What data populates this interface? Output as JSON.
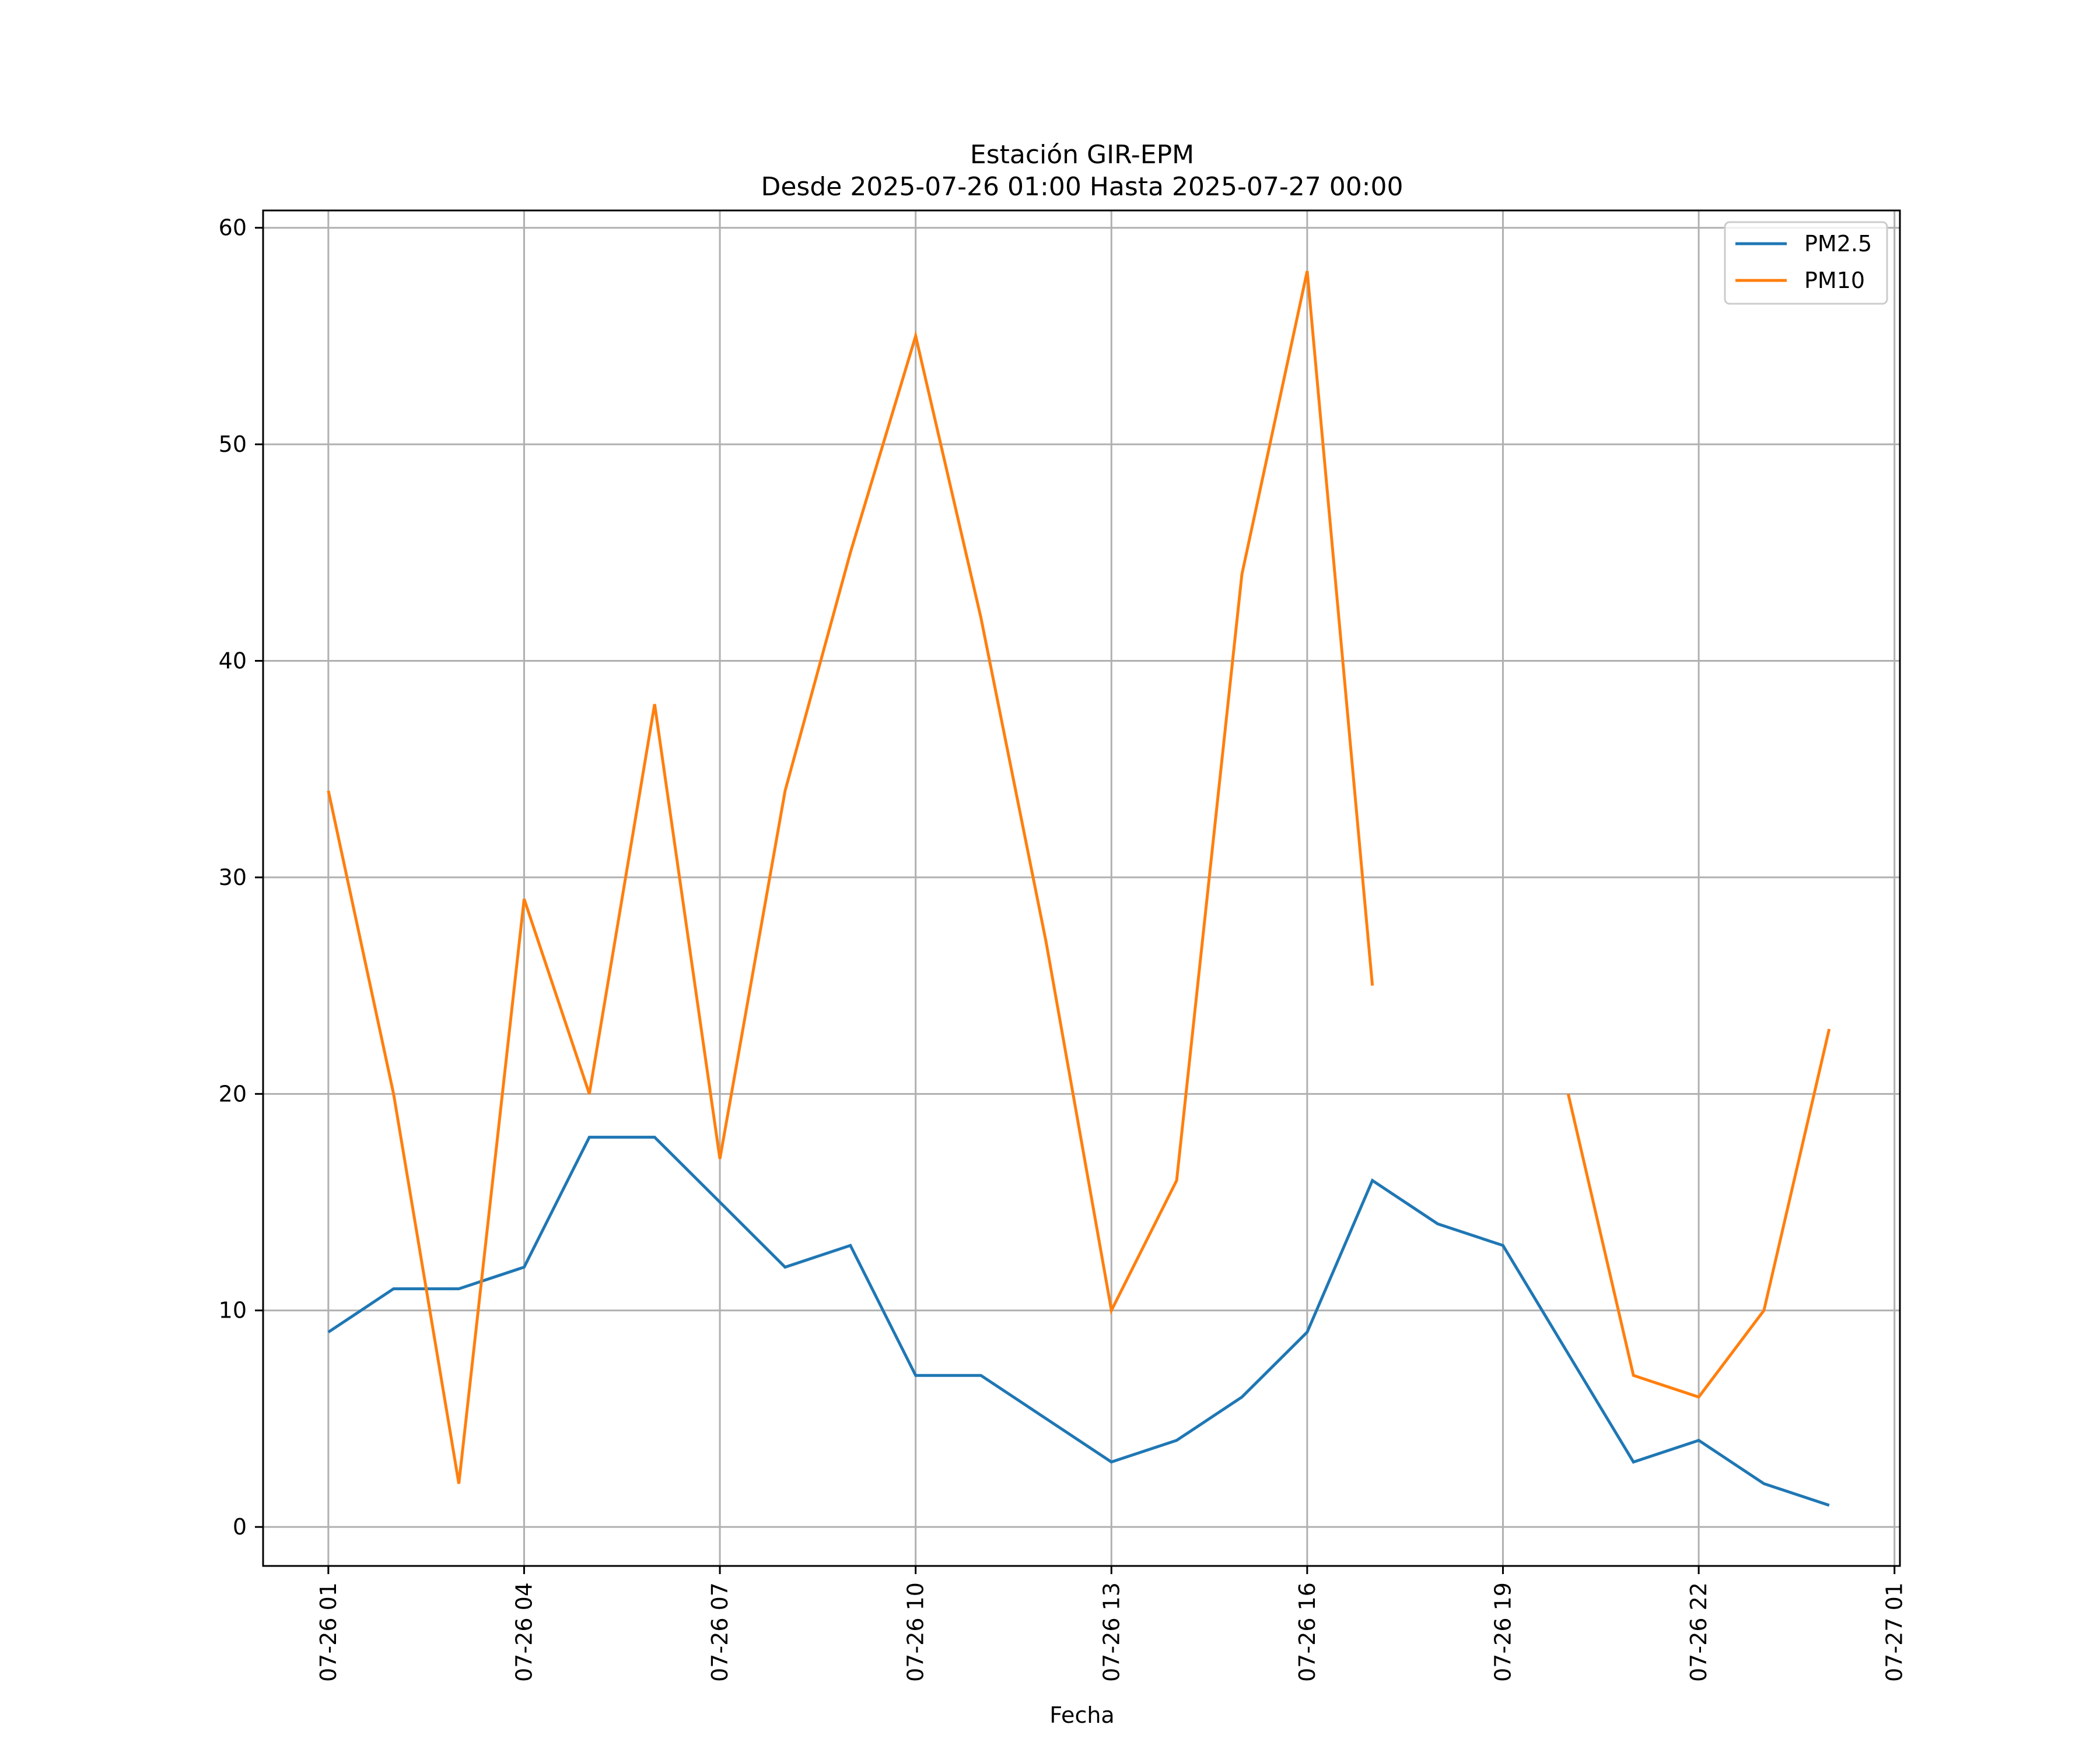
{
  "chart_data": {
    "type": "line",
    "title_line1": "Estación GIR-EPM",
    "title_line2": "Desde 2025-07-26 01:00 Hasta 2025-07-27 00:00",
    "xlabel": "Fecha",
    "ylabel": "",
    "x": [
      "2025-07-26 01:00",
      "2025-07-26 02:00",
      "2025-07-26 03:00",
      "2025-07-26 04:00",
      "2025-07-26 05:00",
      "2025-07-26 06:00",
      "2025-07-26 07:00",
      "2025-07-26 08:00",
      "2025-07-26 09:00",
      "2025-07-26 10:00",
      "2025-07-26 11:00",
      "2025-07-26 12:00",
      "2025-07-26 13:00",
      "2025-07-26 14:00",
      "2025-07-26 15:00",
      "2025-07-26 16:00",
      "2025-07-26 17:00",
      "2025-07-26 18:00",
      "2025-07-26 19:00",
      "2025-07-26 20:00",
      "2025-07-26 21:00",
      "2025-07-26 22:00",
      "2025-07-26 23:00",
      "2025-07-27 00:00"
    ],
    "xlim": [
      "2025-07-26 00:00",
      "2025-07-27 01:05"
    ],
    "ylim": [
      -1.8,
      60.8
    ],
    "xticks": [
      {
        "label": "07-26 01",
        "at": "2025-07-26 01:00"
      },
      {
        "label": "07-26 04",
        "at": "2025-07-26 04:00"
      },
      {
        "label": "07-26 07",
        "at": "2025-07-26 07:00"
      },
      {
        "label": "07-26 10",
        "at": "2025-07-26 10:00"
      },
      {
        "label": "07-26 13",
        "at": "2025-07-26 13:00"
      },
      {
        "label": "07-26 16",
        "at": "2025-07-26 16:00"
      },
      {
        "label": "07-26 19",
        "at": "2025-07-26 19:00"
      },
      {
        "label": "07-26 22",
        "at": "2025-07-26 22:00"
      },
      {
        "label": "07-27 01",
        "at": "2025-07-27 01:00"
      }
    ],
    "yticks": [
      0,
      10,
      20,
      30,
      40,
      50,
      60
    ],
    "grid": true,
    "legend": "upper right",
    "series": [
      {
        "name": "PM2.5",
        "color": "#1f77b4",
        "values": [
          9,
          11,
          11,
          12,
          18,
          18,
          15,
          12,
          13,
          7,
          7,
          5,
          3,
          4,
          6,
          9,
          16,
          14,
          13,
          8,
          3,
          4,
          2,
          1
        ]
      },
      {
        "name": "PM10",
        "color": "#ff7f0e",
        "values": [
          34,
          20,
          2,
          29,
          20,
          38,
          17,
          34,
          45,
          55,
          42,
          27,
          10,
          16,
          44,
          58,
          25,
          null,
          null,
          20,
          7,
          6,
          10,
          23
        ]
      }
    ]
  }
}
